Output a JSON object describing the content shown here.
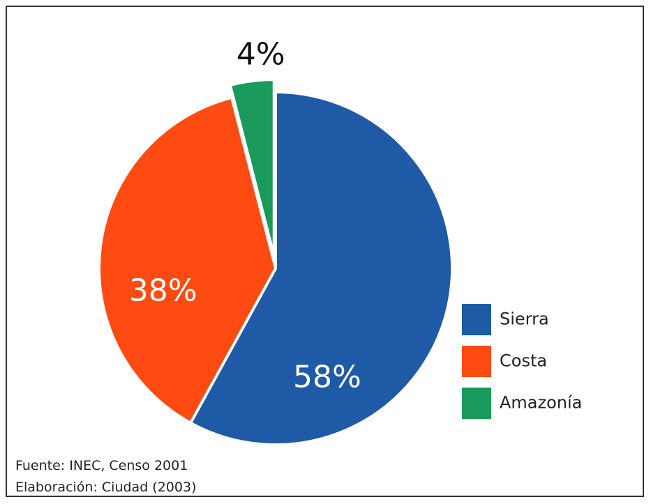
{
  "chart_data": {
    "type": "pie",
    "slices": [
      {
        "name": "Sierra",
        "value": 58,
        "label": "58%",
        "color": "#1f5aa6",
        "label_color": "#ffffff"
      },
      {
        "name": "Costa",
        "value": 38,
        "label": "38%",
        "color": "#ff4a12",
        "label_color": "#ffffff"
      },
      {
        "name": "Amazonía",
        "value": 4,
        "label": "4%",
        "color": "#1a9a5a",
        "label_color": "#111111",
        "exploded": true
      }
    ],
    "legend": {
      "placement": "right",
      "entries": [
        "Sierra",
        "Costa",
        "Amazonía"
      ]
    }
  },
  "notes": {
    "source": "Fuente: INEC, Censo 2001",
    "elaboration": "Elaboración: Ciudad (2003)"
  }
}
